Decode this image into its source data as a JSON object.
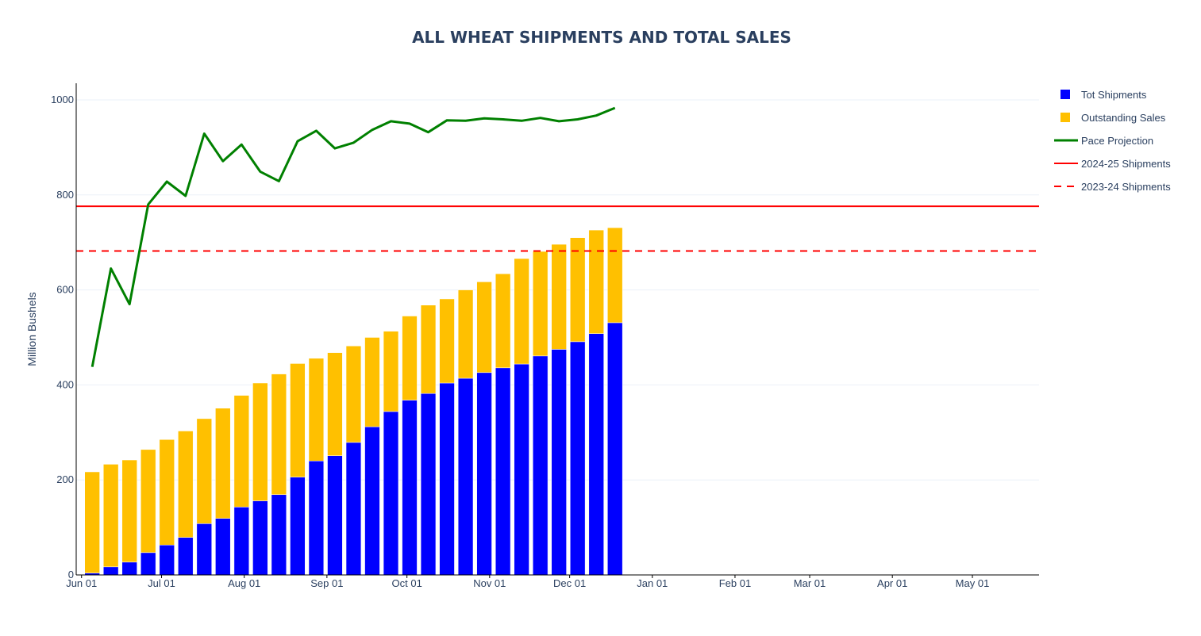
{
  "chart_data": {
    "type": "bar",
    "title": "ALL WHEAT SHIPMENTS AND TOTAL SALES",
    "xlabel": "",
    "ylabel": "Million Bushels",
    "ylim": [
      0,
      1035
    ],
    "yticks": [
      0,
      200,
      400,
      600,
      800,
      1000
    ],
    "x_tick_labels": [
      "Jun 01",
      "Jul 01",
      "Aug 01",
      "Sep 01",
      "Oct 01",
      "Nov 01",
      "Dec 01",
      "Jan 01",
      "Feb 01",
      "Mar 01",
      "Apr 01",
      "May 01"
    ],
    "x_tick_days": [
      0,
      30,
      61,
      92,
      122,
      153,
      183,
      214,
      245,
      273,
      304,
      334
    ],
    "x_range_days": [
      -2,
      359
    ],
    "week_days": [
      4,
      11,
      18,
      25,
      32,
      39,
      46,
      53,
      60,
      67,
      74,
      81,
      88,
      95,
      102,
      109,
      116,
      123,
      130,
      137,
      144,
      151,
      158,
      165,
      172,
      179,
      186,
      193,
      200
    ],
    "series": [
      {
        "name": "Tot Shipments",
        "kind": "bar",
        "color": "#0000ff",
        "values": [
          4,
          17,
          27,
          47,
          63,
          79,
          108,
          119,
          143,
          156,
          169,
          206,
          240,
          251,
          279,
          312,
          344,
          368,
          382,
          404,
          414,
          426,
          436,
          444,
          461,
          475,
          491,
          508,
          531
        ]
      },
      {
        "name": "Outstanding Sales",
        "kind": "bar",
        "color": "#ffc000",
        "values": [
          213,
          216,
          215,
          217,
          222,
          224,
          221,
          232,
          235,
          248,
          254,
          239,
          216,
          217,
          203,
          188,
          169,
          177,
          186,
          177,
          186,
          191,
          198,
          222,
          220,
          221,
          219,
          218,
          200
        ]
      },
      {
        "name": "Pace Projection",
        "kind": "line",
        "color": "#008000",
        "values": [
          438,
          645,
          570,
          780,
          828,
          798,
          929,
          871,
          906,
          849,
          829,
          913,
          935,
          898,
          910,
          937,
          955,
          950,
          932,
          957,
          956,
          961,
          959,
          956,
          962,
          955,
          959,
          967,
          983
        ]
      },
      {
        "name": "2024-25 Shipments",
        "kind": "hline",
        "color": "#ff0000",
        "dash": "solid",
        "value": 776
      },
      {
        "name": "2023-24 Shipments",
        "kind": "hline",
        "color": "#ff0000",
        "dash": "dashed",
        "value": 682
      }
    ],
    "legend": "right",
    "grid": true
  }
}
